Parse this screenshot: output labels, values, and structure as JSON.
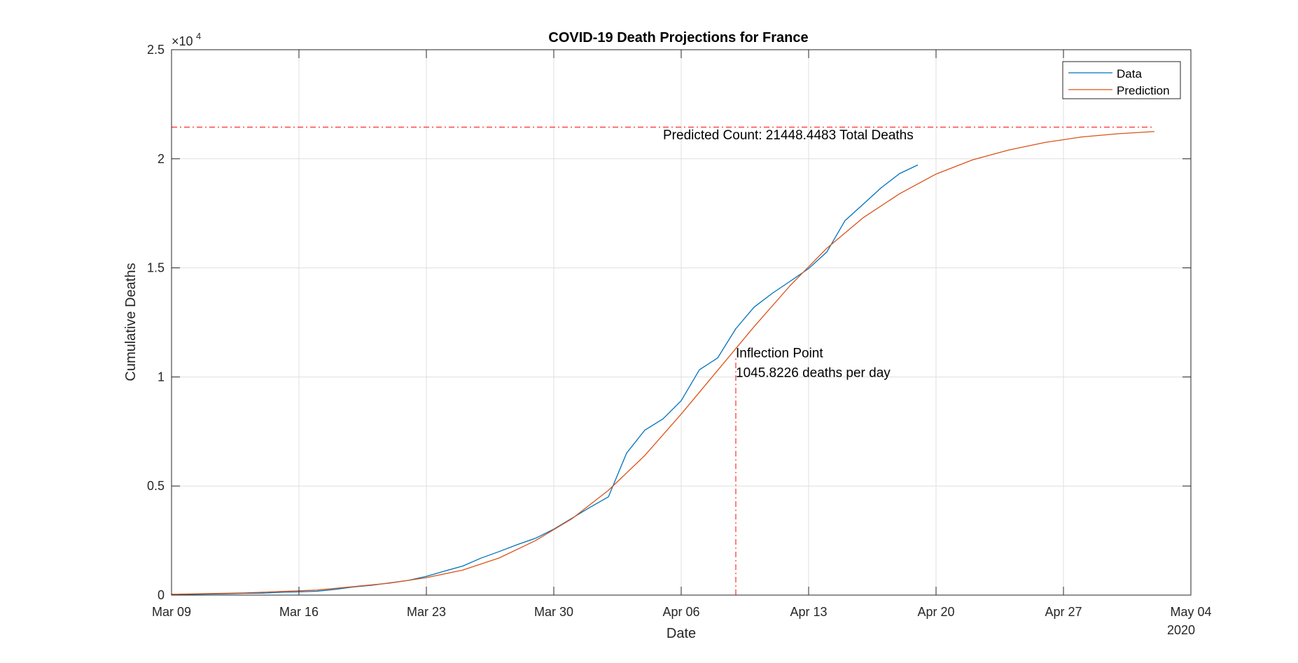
{
  "chart_data": {
    "type": "line",
    "title": "COVID-19 Death Projections for France",
    "xlabel": "Date",
    "ylabel": "Cumulative Deaths",
    "year_label": "2020",
    "y_exponent_base": "×10",
    "y_exponent_power": "4",
    "x_ticks": [
      {
        "date": "2020-03-09",
        "label": "Mar 09"
      },
      {
        "date": "2020-03-16",
        "label": "Mar 16"
      },
      {
        "date": "2020-03-23",
        "label": "Mar 23"
      },
      {
        "date": "2020-03-30",
        "label": "Mar 30"
      },
      {
        "date": "2020-04-06",
        "label": "Apr 06"
      },
      {
        "date": "2020-04-13",
        "label": "Apr 13"
      },
      {
        "date": "2020-04-20",
        "label": "Apr 20"
      },
      {
        "date": "2020-04-27",
        "label": "Apr 27"
      },
      {
        "date": "2020-05-04",
        "label": "May 04"
      }
    ],
    "xlim": [
      "2020-03-09",
      "2020-05-04"
    ],
    "y_ticks": [
      {
        "value": 0,
        "label": "0"
      },
      {
        "value": 5000,
        "label": "0.5"
      },
      {
        "value": 10000,
        "label": "1"
      },
      {
        "value": 15000,
        "label": "1.5"
      },
      {
        "value": 20000,
        "label": "2"
      },
      {
        "value": 25000,
        "label": "2.5"
      }
    ],
    "ylim": [
      0,
      25000
    ],
    "grid": true,
    "legend_position": "top-right",
    "series": [
      {
        "name": "Data",
        "color": "#0072BD",
        "x": [
          "2020-03-09",
          "2020-03-10",
          "2020-03-11",
          "2020-03-12",
          "2020-03-13",
          "2020-03-14",
          "2020-03-15",
          "2020-03-16",
          "2020-03-17",
          "2020-03-18",
          "2020-03-19",
          "2020-03-20",
          "2020-03-21",
          "2020-03-22",
          "2020-03-23",
          "2020-03-24",
          "2020-03-25",
          "2020-03-26",
          "2020-03-27",
          "2020-03-28",
          "2020-03-29",
          "2020-03-30",
          "2020-03-31",
          "2020-04-01",
          "2020-04-02",
          "2020-04-03",
          "2020-04-04",
          "2020-04-05",
          "2020-04-06",
          "2020-04-07",
          "2020-04-08",
          "2020-04-09",
          "2020-04-10",
          "2020-04-11",
          "2020-04-12",
          "2020-04-13",
          "2020-04-14",
          "2020-04-15",
          "2020-04-16",
          "2020-04-17",
          "2020-04-18",
          "2020-04-19"
        ],
        "values": [
          25,
          33,
          48,
          61,
          79,
          91,
          127,
          148,
          175,
          264,
          372,
          450,
          562,
          674,
          860,
          1100,
          1331,
          1696,
          1995,
          2314,
          2606,
          3024,
          3523,
          4032,
          4503,
          6507,
          7560,
          8078,
          8911,
          10328,
          10869,
          12210,
          13197,
          13832,
          14393,
          14967,
          15729,
          17167,
          17920,
          18681,
          19323,
          19718
        ]
      },
      {
        "name": "Prediction",
        "color": "#D95319",
        "x": [
          "2020-03-09",
          "2020-03-13",
          "2020-03-17",
          "2020-03-21",
          "2020-03-23",
          "2020-03-25",
          "2020-03-27",
          "2020-03-29",
          "2020-03-31",
          "2020-04-02",
          "2020-04-04",
          "2020-04-06",
          "2020-04-08",
          "2020-04-10",
          "2020-04-12",
          "2020-04-14",
          "2020-04-16",
          "2020-04-18",
          "2020-04-20",
          "2020-04-22",
          "2020-04-24",
          "2020-04-26",
          "2020-04-28",
          "2020-04-30",
          "2020-05-02"
        ],
        "values": [
          40,
          100,
          230,
          550,
          800,
          1150,
          1700,
          2500,
          3500,
          4800,
          6400,
          8300,
          10300,
          12300,
          14200,
          15900,
          17300,
          18400,
          19300,
          19950,
          20400,
          20750,
          21000,
          21150,
          21250
        ]
      }
    ],
    "reference_lines": {
      "horizontal": {
        "y": 21448.4483,
        "color": "#FF0000",
        "style": "dash-dot"
      },
      "vertical": {
        "x": "2020-04-09",
        "color": "#FF0000",
        "style": "dash-dot"
      }
    },
    "annotations": {
      "predicted_count": {
        "text": "Predicted Count: 21448.4483 Total Deaths",
        "x": "2020-04-05",
        "y": 20900
      },
      "inflection_line1": {
        "text": "Inflection Point",
        "x": "2020-04-09",
        "y": 10900
      },
      "inflection_line2": {
        "text": "1045.8226 deaths per day",
        "x": "2020-04-09",
        "y": 10000
      }
    }
  }
}
